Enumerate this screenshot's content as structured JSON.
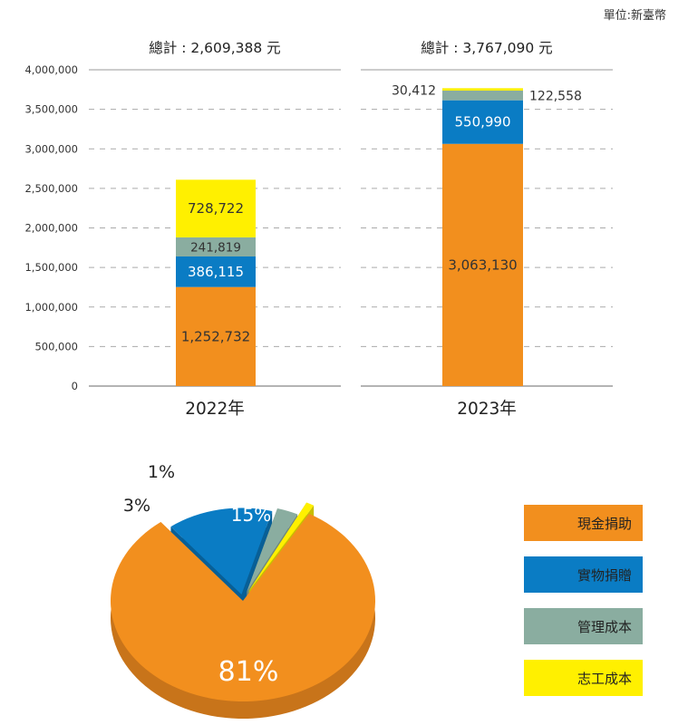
{
  "unit_label": "單位:新臺幣",
  "colors": {
    "cash": "#F28F1E",
    "in_kind": "#0A7CC4",
    "admin": "#8AADA0",
    "volunteer": "#FFF000"
  },
  "chart_data": [
    {
      "type": "bar",
      "stacked": true,
      "categories": [
        "2022年",
        "2023年"
      ],
      "totals_labels": [
        "總計 : 2,609,388 元",
        "總計 : 3,767,090 元"
      ],
      "ylim": [
        0,
        4000000
      ],
      "yticks": [
        0,
        500000,
        1000000,
        1500000,
        2000000,
        2500000,
        3000000,
        3500000,
        4000000
      ],
      "ytick_labels": [
        "0",
        "500,000",
        "1,000,000",
        "1,500,000",
        "2,000,000",
        "2,500,000",
        "3,000,000",
        "3,500,000",
        "4,000,000"
      ],
      "grid": "dashed",
      "series": [
        {
          "name": "現金捐助",
          "values": [
            1252732,
            3063130
          ],
          "labels": [
            "1,252,732",
            "3,063,130"
          ]
        },
        {
          "name": "實物捐贈",
          "values": [
            386115,
            550990
          ],
          "labels": [
            "386,115",
            "550,990"
          ]
        },
        {
          "name": "管理成本",
          "values": [
            241819,
            122558
          ],
          "labels": [
            "241,819",
            "122,558"
          ]
        },
        {
          "name": "志工成本",
          "values": [
            728722,
            30412
          ],
          "labels": [
            "728,722",
            "30,412"
          ]
        }
      ]
    },
    {
      "type": "pie",
      "style": "3d",
      "slices": [
        {
          "name": "現金捐助",
          "value": 81,
          "label": "81%"
        },
        {
          "name": "實物捐贈",
          "value": 15,
          "label": "15%"
        },
        {
          "name": "管理成本",
          "value": 3,
          "label": "3%"
        },
        {
          "name": "志工成本",
          "value": 1,
          "label": "1%"
        }
      ],
      "legend": {
        "placement": "right",
        "items": [
          "現金捐助",
          "實物捐贈",
          "管理成本",
          "志工成本"
        ]
      }
    }
  ]
}
